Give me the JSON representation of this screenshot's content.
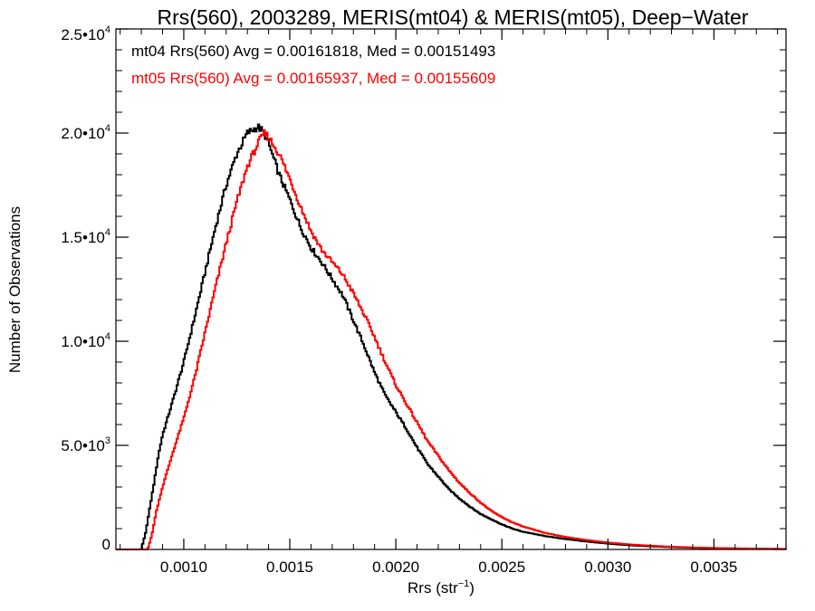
{
  "chart_data": {
    "type": "line",
    "title": "Rrs(560), 2003289, MERIS(mt04) & MERIS(mt05), Deep−Water",
    "xlabel": "Rrs (str",
    "xlabel_sup": "−1",
    "xlabel_end": ")",
    "ylabel": "Number of Observations",
    "xlim": [
      0.00068,
      0.00384
    ],
    "ylim": [
      0,
      25000
    ],
    "x_ticks": [
      {
        "value": 0.001,
        "label": "0.0010"
      },
      {
        "value": 0.0015,
        "label": "0.0015"
      },
      {
        "value": 0.002,
        "label": "0.0020"
      },
      {
        "value": 0.0025,
        "label": "0.0025"
      },
      {
        "value": 0.003,
        "label": "0.0030"
      },
      {
        "value": 0.0035,
        "label": "0.0035"
      }
    ],
    "y_ticks": [
      {
        "value": 0,
        "mantissa": "0",
        "exp": ""
      },
      {
        "value": 5000,
        "mantissa": "5.0•10",
        "exp": "3"
      },
      {
        "value": 10000,
        "mantissa": "1.0•10",
        "exp": "4"
      },
      {
        "value": 15000,
        "mantissa": "1.5•10",
        "exp": "4"
      },
      {
        "value": 20000,
        "mantissa": "2.0•10",
        "exp": "4"
      },
      {
        "value": 25000,
        "mantissa": "2.5•10",
        "exp": "4"
      }
    ],
    "grid": false,
    "legend_position": "top-left",
    "series": [
      {
        "name": "mt04 Rrs(560) Avg = 0.00161818, Med = 0.00151493",
        "color": "#000000",
        "points": [
          [
            0.00068,
            0
          ],
          [
            0.0008,
            0
          ],
          [
            0.00082,
            800
          ],
          [
            0.00084,
            2000
          ],
          [
            0.00086,
            3200
          ],
          [
            0.00088,
            4500
          ],
          [
            0.0009,
            5500
          ],
          [
            0.00095,
            7200
          ],
          [
            0.001,
            9000
          ],
          [
            0.00105,
            11100
          ],
          [
            0.0011,
            13300
          ],
          [
            0.00115,
            15500
          ],
          [
            0.0012,
            17500
          ],
          [
            0.00125,
            19000
          ],
          [
            0.0013,
            20000
          ],
          [
            0.00135,
            20300
          ],
          [
            0.00138,
            20000
          ],
          [
            0.0014,
            19500
          ],
          [
            0.00145,
            18000
          ],
          [
            0.0015,
            16800
          ],
          [
            0.00155,
            15500
          ],
          [
            0.0016,
            14500
          ],
          [
            0.00165,
            13800
          ],
          [
            0.0017,
            13000
          ],
          [
            0.00175,
            12200
          ],
          [
            0.0018,
            11000
          ],
          [
            0.00185,
            9800
          ],
          [
            0.0019,
            8500
          ],
          [
            0.00195,
            7400
          ],
          [
            0.002,
            6600
          ],
          [
            0.00205,
            5800
          ],
          [
            0.0021,
            4900
          ],
          [
            0.00215,
            4100
          ],
          [
            0.0022,
            3500
          ],
          [
            0.00225,
            2900
          ],
          [
            0.0023,
            2450
          ],
          [
            0.00235,
            2050
          ],
          [
            0.0024,
            1700
          ],
          [
            0.00245,
            1450
          ],
          [
            0.0025,
            1200
          ],
          [
            0.00255,
            1000
          ],
          [
            0.0026,
            850
          ],
          [
            0.0027,
            650
          ],
          [
            0.0028,
            500
          ],
          [
            0.0029,
            380
          ],
          [
            0.003,
            280
          ],
          [
            0.0031,
            200
          ],
          [
            0.0032,
            150
          ],
          [
            0.0033,
            110
          ],
          [
            0.0034,
            80
          ],
          [
            0.0035,
            60
          ],
          [
            0.0036,
            45
          ],
          [
            0.0037,
            35
          ],
          [
            0.0038,
            25
          ],
          [
            0.00384,
            20
          ]
        ]
      },
      {
        "name": "mt05 Rrs(560) Avg = 0.00165937, Med = 0.00155609",
        "color": "#ff0000",
        "points": [
          [
            0.00068,
            0
          ],
          [
            0.00083,
            0
          ],
          [
            0.00085,
            700
          ],
          [
            0.00087,
            1800
          ],
          [
            0.0009,
            3000
          ],
          [
            0.00095,
            4700
          ],
          [
            0.001,
            6300
          ],
          [
            0.00105,
            8200
          ],
          [
            0.0011,
            10400
          ],
          [
            0.00115,
            12600
          ],
          [
            0.0012,
            14700
          ],
          [
            0.00125,
            16700
          ],
          [
            0.0013,
            18400
          ],
          [
            0.00135,
            19500
          ],
          [
            0.00138,
            20000
          ],
          [
            0.0014,
            19800
          ],
          [
            0.00145,
            19000
          ],
          [
            0.0015,
            17800
          ],
          [
            0.00155,
            16500
          ],
          [
            0.0016,
            15300
          ],
          [
            0.00165,
            14400
          ],
          [
            0.0017,
            13800
          ],
          [
            0.00175,
            13200
          ],
          [
            0.0018,
            12300
          ],
          [
            0.00185,
            11300
          ],
          [
            0.0019,
            10200
          ],
          [
            0.00195,
            9000
          ],
          [
            0.002,
            7900
          ],
          [
            0.00205,
            7000
          ],
          [
            0.0021,
            6100
          ],
          [
            0.00215,
            5200
          ],
          [
            0.0022,
            4500
          ],
          [
            0.00225,
            3800
          ],
          [
            0.0023,
            3200
          ],
          [
            0.00235,
            2700
          ],
          [
            0.0024,
            2250
          ],
          [
            0.00245,
            1850
          ],
          [
            0.0025,
            1550
          ],
          [
            0.00255,
            1300
          ],
          [
            0.0026,
            1100
          ],
          [
            0.0027,
            800
          ],
          [
            0.0028,
            600
          ],
          [
            0.0029,
            450
          ],
          [
            0.003,
            330
          ],
          [
            0.0031,
            240
          ],
          [
            0.0032,
            180
          ],
          [
            0.0033,
            130
          ],
          [
            0.0034,
            95
          ],
          [
            0.0035,
            70
          ],
          [
            0.0036,
            55
          ],
          [
            0.0037,
            40
          ],
          [
            0.0038,
            30
          ],
          [
            0.00384,
            25
          ]
        ]
      }
    ]
  }
}
